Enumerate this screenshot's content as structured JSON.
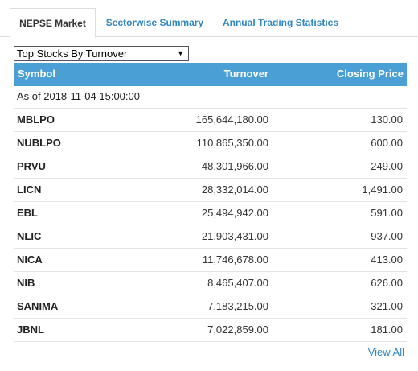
{
  "tabs": [
    {
      "label": "NEPSE Market"
    },
    {
      "label": "Sectorwise Summary"
    },
    {
      "label": "Annual Trading Statistics"
    }
  ],
  "dropdown": {
    "selected": "Top Stocks By Turnover"
  },
  "table": {
    "headers": [
      "Symbol",
      "Turnover",
      "Closing Price"
    ],
    "as_of": "As of 2018-11-04 15:00:00",
    "rows": [
      {
        "symbol": "MBLPO",
        "turnover": "165,644,180.00",
        "closing": "130.00"
      },
      {
        "symbol": "NUBLPO",
        "turnover": "110,865,350.00",
        "closing": "600.00"
      },
      {
        "symbol": "PRVU",
        "turnover": "48,301,966.00",
        "closing": "249.00"
      },
      {
        "symbol": "LICN",
        "turnover": "28,332,014.00",
        "closing": "1,491.00"
      },
      {
        "symbol": "EBL",
        "turnover": "25,494,942.00",
        "closing": "591.00"
      },
      {
        "symbol": "NLIC",
        "turnover": "21,903,431.00",
        "closing": "937.00"
      },
      {
        "symbol": "NICA",
        "turnover": "11,746,678.00",
        "closing": "413.00"
      },
      {
        "symbol": "NIB",
        "turnover": "8,465,407.00",
        "closing": "626.00"
      },
      {
        "symbol": "SANIMA",
        "turnover": "7,183,215.00",
        "closing": "321.00"
      },
      {
        "symbol": "JBNL",
        "turnover": "7,022,859.00",
        "closing": "181.00"
      }
    ]
  },
  "view_all_label": "View All",
  "colors": {
    "header_bg": "#4a9fd5",
    "link": "#2e86c1"
  }
}
